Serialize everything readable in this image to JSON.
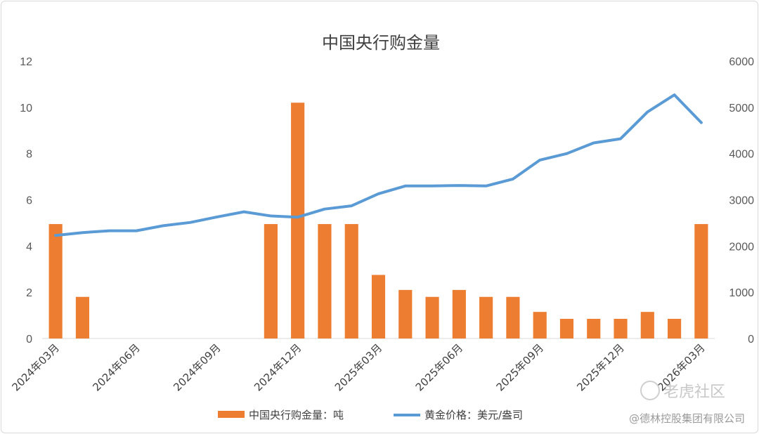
{
  "chart_data": {
    "type": "bar",
    "title": "中国央行购金量",
    "categories": [
      "2024年03月",
      "2024年04月",
      "2024年05月",
      "2024年06月",
      "2024年07月",
      "2024年08月",
      "2024年09月",
      "2024年10月",
      "2024年11月",
      "2024年12月",
      "2025年01月",
      "2025年02月",
      "2025年03月",
      "2025年04月",
      "2025年05月",
      "2025年06月",
      "2025年07月",
      "2025年08月",
      "2025年09月",
      "2025年10月",
      "2025年11月",
      "2025年12月",
      "2026年01月",
      "2026年02月",
      "2026年03月"
    ],
    "x_tick_labels": [
      "2024年03月",
      "2024年06月",
      "2024年09月",
      "2024年12月",
      "2025年03月",
      "2025年06月",
      "2025年09月",
      "2025年12月",
      "2026年03月"
    ],
    "y_left": {
      "min": 0,
      "max": 12,
      "ticks": [
        "0",
        "2",
        "4",
        "6",
        "8",
        "10",
        "12"
      ]
    },
    "y_right": {
      "min": 0,
      "max": 6000,
      "ticks": [
        "0",
        "1000",
        "2000",
        "3000",
        "4000",
        "5000",
        "6000"
      ]
    },
    "series": [
      {
        "name": "中国央行购金量：吨",
        "type": "bar",
        "axis": "left",
        "color": "#ED7D31",
        "values": [
          4.95,
          1.8,
          0,
          0,
          0,
          0,
          0,
          0,
          4.95,
          10.2,
          4.95,
          4.95,
          2.75,
          2.1,
          1.8,
          2.1,
          1.8,
          1.8,
          1.15,
          0.85,
          0.85,
          0.85,
          1.15,
          0.85,
          4.95
        ]
      },
      {
        "name": "黄金价格：美元/盎司",
        "type": "line",
        "axis": "right",
        "color": "#5B9BD5",
        "values": [
          2230,
          2290,
          2330,
          2330,
          2440,
          2510,
          2630,
          2740,
          2650,
          2625,
          2800,
          2870,
          3130,
          3300,
          3300,
          3310,
          3300,
          3450,
          3860,
          4000,
          4230,
          4320,
          4900,
          5270,
          4670
        ]
      }
    ],
    "grid": false,
    "legend": "bottom"
  },
  "watermark": {
    "brand": "老虎社区",
    "author": "@德林控股集团有限公司"
  }
}
